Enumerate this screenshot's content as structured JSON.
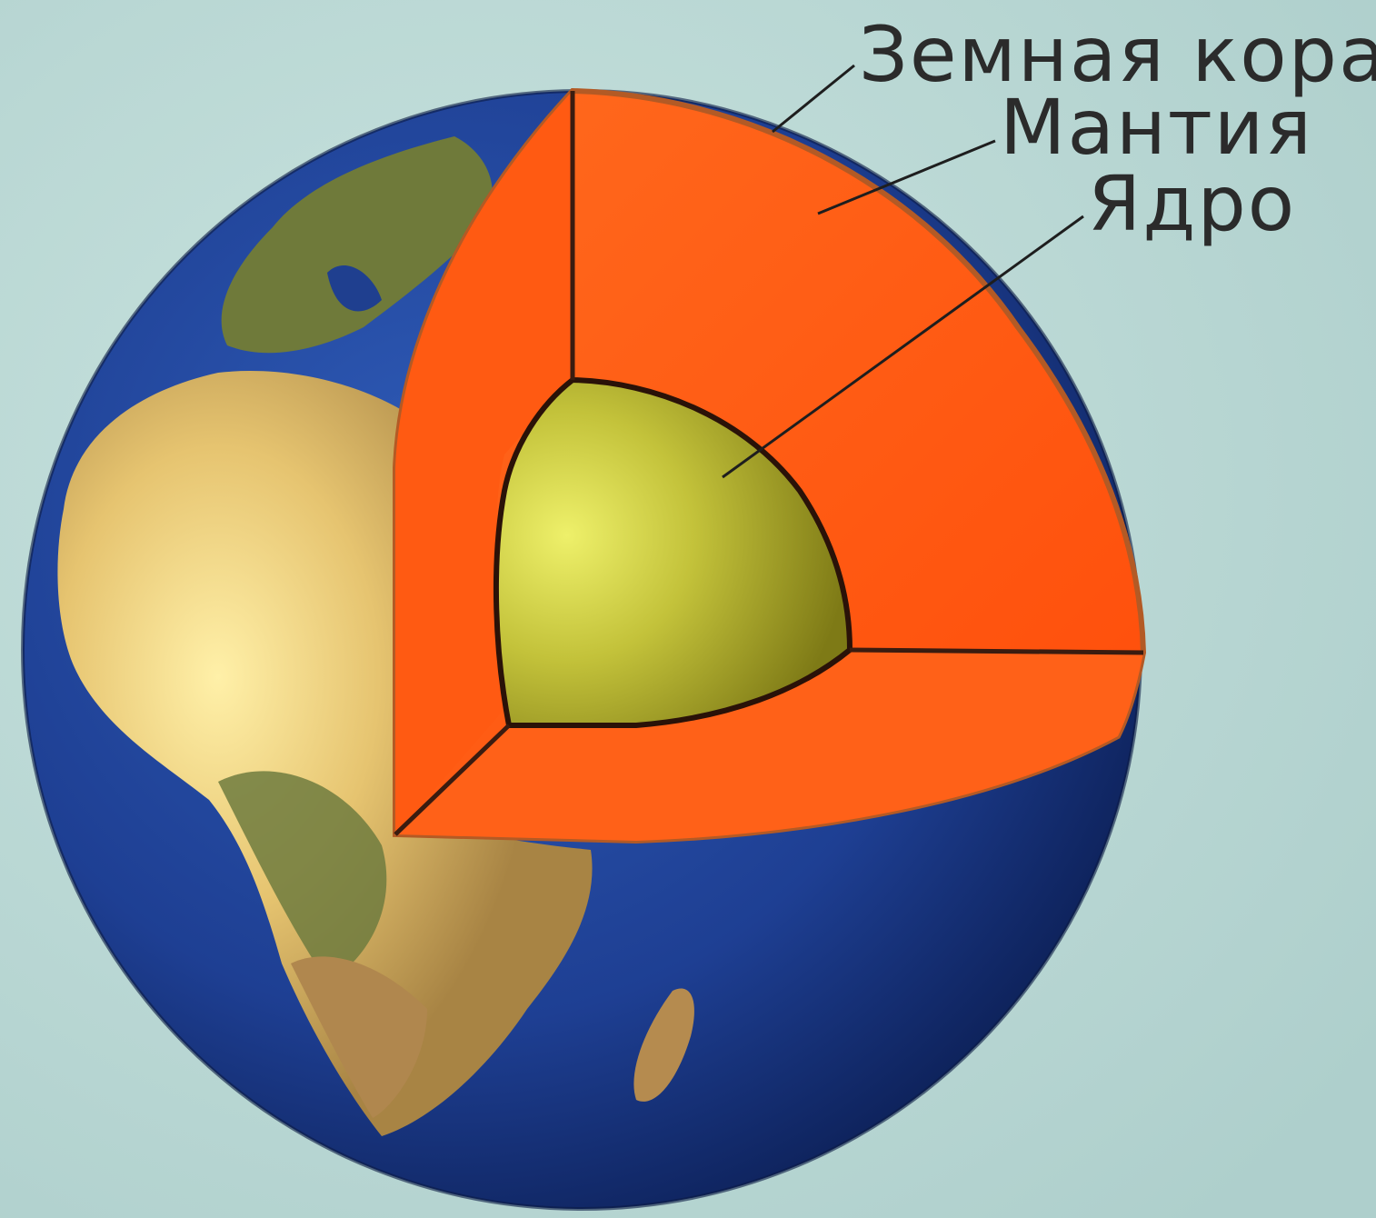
{
  "labels": {
    "crust": "Земная кора",
    "mantle": "Мантия",
    "core": "Ядро"
  },
  "colors": {
    "background": "#bfdcd9",
    "ocean": "#1f3f8f",
    "land": "#b89a5a",
    "mantle": "#ff5a10",
    "core": "#b7b52c",
    "outline": "#3a1c10"
  }
}
